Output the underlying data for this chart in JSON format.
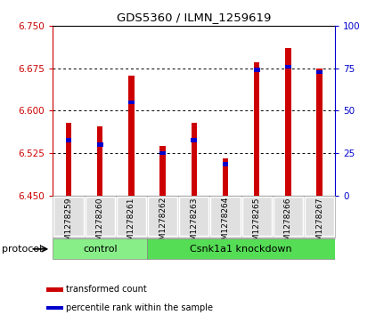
{
  "title": "GDS5360 / ILMN_1259619",
  "samples": [
    "GSM1278259",
    "GSM1278260",
    "GSM1278261",
    "GSM1278262",
    "GSM1278263",
    "GSM1278264",
    "GSM1278265",
    "GSM1278266",
    "GSM1278267"
  ],
  "red_values": [
    6.578,
    6.572,
    6.662,
    6.537,
    6.578,
    6.515,
    6.685,
    6.71,
    6.675
  ],
  "blue_values": [
    6.548,
    6.54,
    6.615,
    6.525,
    6.548,
    6.505,
    6.672,
    6.678,
    6.668
  ],
  "ylim": [
    6.45,
    6.75
  ],
  "y2lim": [
    0,
    100
  ],
  "yticks": [
    6.45,
    6.525,
    6.6,
    6.675,
    6.75
  ],
  "y2ticks": [
    0,
    25,
    50,
    75,
    100
  ],
  "bar_bottom": 6.45,
  "bar_width": 0.18,
  "red_color": "#cc0000",
  "blue_color": "#0000cc",
  "control_color": "#88ee88",
  "knockdown_color": "#55dd55",
  "legend_items": [
    {
      "label": "transformed count",
      "color": "#cc0000"
    },
    {
      "label": "percentile rank within the sample",
      "color": "#0000cc"
    }
  ],
  "protocol_label": "protocol"
}
